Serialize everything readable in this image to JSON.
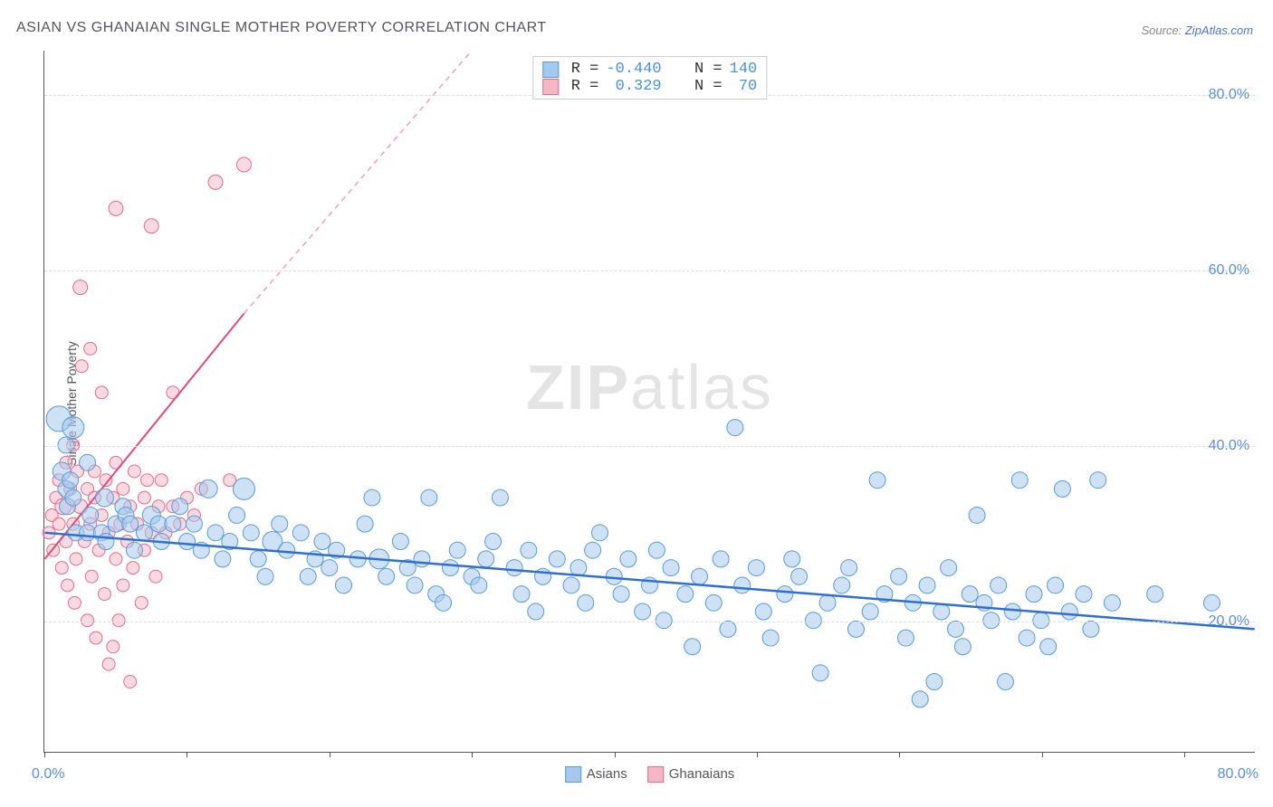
{
  "title": "ASIAN VS GHANAIAN SINGLE MOTHER POVERTY CORRELATION CHART",
  "source_prefix": "Source: ",
  "source_name": "ZipAtlas.com",
  "y_axis_label": "Single Mother Poverty",
  "watermark_bold": "ZIP",
  "watermark_light": "atlas",
  "chart": {
    "type": "scatter",
    "background_color": "#ffffff",
    "grid_color": "#dddddd",
    "axis_color": "#555555",
    "tick_label_color": "#5b8dd6",
    "tick_label_fontsize": 16,
    "title_color": "#555560",
    "title_fontsize": 16,
    "xlim": [
      0,
      85
    ],
    "ylim": [
      5,
      85
    ],
    "x_tick_positions": [
      0,
      10,
      20,
      30,
      40,
      50,
      60,
      70,
      80
    ],
    "x_left_label": "0.0%",
    "x_right_label": "80.0%",
    "y_gridlines": [
      {
        "value": 20,
        "label": "20.0%"
      },
      {
        "value": 40,
        "label": "40.0%"
      },
      {
        "value": 60,
        "label": "60.0%"
      },
      {
        "value": 80,
        "label": "80.0%"
      }
    ],
    "series": [
      {
        "name": "Asians",
        "label": "Asians",
        "fill_color": "#a6c8ec",
        "stroke_color": "#5a9bd5",
        "fill_opacity": 0.55,
        "marker_radius": 9,
        "trend": {
          "x1": 0,
          "y1": 30,
          "x2": 85,
          "y2": 19,
          "color": "#2f6fd0",
          "width": 2.5,
          "dash": "none"
        },
        "stats": {
          "R_label": "R =",
          "R": "-0.440",
          "N_label": "N =",
          "N": "140"
        },
        "points": [
          [
            1,
            43,
            14
          ],
          [
            1.2,
            37,
            10
          ],
          [
            1.5,
            40,
            9
          ],
          [
            1.5,
            35,
            9
          ],
          [
            1.6,
            33,
            9
          ],
          [
            1.8,
            36,
            9
          ],
          [
            2,
            42,
            12
          ],
          [
            2,
            34,
            9
          ],
          [
            2.2,
            30,
            9
          ],
          [
            3,
            38,
            9
          ],
          [
            3,
            30,
            9
          ],
          [
            3.2,
            32,
            9
          ],
          [
            4,
            30,
            9
          ],
          [
            4.2,
            34,
            10
          ],
          [
            4.3,
            29,
            9
          ],
          [
            5,
            31,
            9
          ],
          [
            5.5,
            33,
            9
          ],
          [
            5.7,
            32,
            9
          ],
          [
            6,
            31,
            9
          ],
          [
            6.3,
            28,
            9
          ],
          [
            7,
            30,
            9
          ],
          [
            7.5,
            32,
            10
          ],
          [
            8,
            31,
            9
          ],
          [
            8.2,
            29,
            9
          ],
          [
            9,
            31,
            9
          ],
          [
            9.5,
            33,
            9
          ],
          [
            10,
            29,
            9
          ],
          [
            10.5,
            31,
            9
          ],
          [
            11,
            28,
            9
          ],
          [
            11.5,
            35,
            10
          ],
          [
            12,
            30,
            9
          ],
          [
            12.5,
            27,
            9
          ],
          [
            13,
            29,
            9
          ],
          [
            13.5,
            32,
            9
          ],
          [
            14,
            35,
            12
          ],
          [
            14.5,
            30,
            9
          ],
          [
            15,
            27,
            9
          ],
          [
            15.5,
            25,
            9
          ],
          [
            16,
            29,
            11
          ],
          [
            16.5,
            31,
            9
          ],
          [
            17,
            28,
            9
          ],
          [
            18,
            30,
            9
          ],
          [
            18.5,
            25,
            9
          ],
          [
            19,
            27,
            9
          ],
          [
            19.5,
            29,
            9
          ],
          [
            20,
            26,
            9
          ],
          [
            20.5,
            28,
            9
          ],
          [
            21,
            24,
            9
          ],
          [
            22,
            27,
            9
          ],
          [
            22.5,
            31,
            9
          ],
          [
            23,
            34,
            9
          ],
          [
            23.5,
            27,
            11
          ],
          [
            24,
            25,
            9
          ],
          [
            25,
            29,
            9
          ],
          [
            25.5,
            26,
            9
          ],
          [
            26,
            24,
            9
          ],
          [
            26.5,
            27,
            9
          ],
          [
            27,
            34,
            9
          ],
          [
            27.5,
            23,
            9
          ],
          [
            28,
            22,
            9
          ],
          [
            28.5,
            26,
            9
          ],
          [
            29,
            28,
            9
          ],
          [
            30,
            25,
            9
          ],
          [
            30.5,
            24,
            9
          ],
          [
            31,
            27,
            9
          ],
          [
            31.5,
            29,
            9
          ],
          [
            32,
            34,
            9
          ],
          [
            33,
            26,
            9
          ],
          [
            33.5,
            23,
            9
          ],
          [
            34,
            28,
            9
          ],
          [
            34.5,
            21,
            9
          ],
          [
            35,
            25,
            9
          ],
          [
            36,
            27,
            9
          ],
          [
            37,
            24,
            9
          ],
          [
            37.5,
            26,
            9
          ],
          [
            38,
            22,
            9
          ],
          [
            38.5,
            28,
            9
          ],
          [
            39,
            30,
            9
          ],
          [
            40,
            25,
            9
          ],
          [
            40.5,
            23,
            9
          ],
          [
            41,
            27,
            9
          ],
          [
            42,
            21,
            9
          ],
          [
            42.5,
            24,
            9
          ],
          [
            43,
            28,
            9
          ],
          [
            43.5,
            20,
            9
          ],
          [
            44,
            26,
            9
          ],
          [
            45,
            23,
            9
          ],
          [
            45.5,
            17,
            9
          ],
          [
            46,
            25,
            9
          ],
          [
            47,
            22,
            9
          ],
          [
            47.5,
            27,
            9
          ],
          [
            48,
            19,
            9
          ],
          [
            48.5,
            42,
            9
          ],
          [
            49,
            24,
            9
          ],
          [
            50,
            26,
            9
          ],
          [
            50.5,
            21,
            9
          ],
          [
            51,
            18,
            9
          ],
          [
            52,
            23,
            9
          ],
          [
            52.5,
            27,
            9
          ],
          [
            53,
            25,
            9
          ],
          [
            54,
            20,
            9
          ],
          [
            54.5,
            14,
            9
          ],
          [
            55,
            22,
            9
          ],
          [
            56,
            24,
            9
          ],
          [
            56.5,
            26,
            9
          ],
          [
            57,
            19,
            9
          ],
          [
            58,
            21,
            9
          ],
          [
            58.5,
            36,
            9
          ],
          [
            59,
            23,
            9
          ],
          [
            60,
            25,
            9
          ],
          [
            60.5,
            18,
            9
          ],
          [
            61,
            22,
            9
          ],
          [
            61.5,
            11,
            9
          ],
          [
            62,
            24,
            9
          ],
          [
            62.5,
            13,
            9
          ],
          [
            63,
            21,
            9
          ],
          [
            63.5,
            26,
            9
          ],
          [
            64,
            19,
            9
          ],
          [
            64.5,
            17,
            9
          ],
          [
            65,
            23,
            9
          ],
          [
            65.5,
            32,
            9
          ],
          [
            66,
            22,
            9
          ],
          [
            66.5,
            20,
            9
          ],
          [
            67,
            24,
            9
          ],
          [
            67.5,
            13,
            9
          ],
          [
            68,
            21,
            9
          ],
          [
            68.5,
            36,
            9
          ],
          [
            69,
            18,
            9
          ],
          [
            69.5,
            23,
            9
          ],
          [
            70,
            20,
            9
          ],
          [
            70.5,
            17,
            9
          ],
          [
            71,
            24,
            9
          ],
          [
            71.5,
            35,
            9
          ],
          [
            72,
            21,
            9
          ],
          [
            73,
            23,
            9
          ],
          [
            73.5,
            19,
            9
          ],
          [
            74,
            36,
            9
          ],
          [
            75,
            22,
            9
          ],
          [
            78,
            23,
            9
          ],
          [
            82,
            22,
            9
          ]
        ]
      },
      {
        "name": "Ghanaians",
        "label": "Ghanaians",
        "fill_color": "#f5b6c5",
        "stroke_color": "#e56b8a",
        "fill_opacity": 0.5,
        "marker_radius": 8,
        "trend": {
          "x1": 0,
          "y1": 27,
          "x2": 14,
          "y2": 55,
          "color": "#e04a78",
          "width": 2,
          "dash": "none"
        },
        "trend_extend": {
          "x1": 14,
          "y1": 55,
          "x2": 30,
          "y2": 85,
          "color": "#f0a0b8",
          "width": 1.5,
          "dash": "6 5"
        },
        "stats": {
          "R_label": "R =",
          "R": " 0.329",
          "N_label": "N =",
          "N": " 70"
        },
        "points": [
          [
            0.3,
            30,
            7
          ],
          [
            0.5,
            32,
            7
          ],
          [
            0.6,
            28,
            7
          ],
          [
            0.8,
            34,
            7
          ],
          [
            1,
            31,
            7
          ],
          [
            1,
            36,
            7
          ],
          [
            1.2,
            26,
            7
          ],
          [
            1.3,
            33,
            9
          ],
          [
            1.5,
            29,
            7
          ],
          [
            1.5,
            38,
            7
          ],
          [
            1.6,
            24,
            7
          ],
          [
            1.8,
            35,
            7
          ],
          [
            2,
            31,
            7
          ],
          [
            2,
            40,
            7
          ],
          [
            2.1,
            22,
            7
          ],
          [
            2.2,
            27,
            7
          ],
          [
            2.3,
            37,
            7
          ],
          [
            2.5,
            33,
            8
          ],
          [
            2.5,
            58,
            8
          ],
          [
            2.6,
            49,
            7
          ],
          [
            2.8,
            29,
            7
          ],
          [
            3,
            35,
            7
          ],
          [
            3,
            20,
            7
          ],
          [
            3.2,
            31,
            7
          ],
          [
            3.2,
            51,
            7
          ],
          [
            3.3,
            25,
            7
          ],
          [
            3.5,
            34,
            7
          ],
          [
            3.5,
            37,
            7
          ],
          [
            3.6,
            18,
            7
          ],
          [
            3.8,
            28,
            7
          ],
          [
            4,
            32,
            7
          ],
          [
            4,
            46,
            7
          ],
          [
            4.2,
            23,
            7
          ],
          [
            4.3,
            36,
            7
          ],
          [
            4.5,
            30,
            7
          ],
          [
            4.5,
            15,
            7
          ],
          [
            4.8,
            34,
            7
          ],
          [
            4.8,
            17,
            7
          ],
          [
            5,
            27,
            7
          ],
          [
            5,
            38,
            7
          ],
          [
            5,
            67,
            8
          ],
          [
            5.2,
            20,
            7
          ],
          [
            5.3,
            31,
            7
          ],
          [
            5.5,
            35,
            7
          ],
          [
            5.5,
            24,
            7
          ],
          [
            5.8,
            29,
            7
          ],
          [
            6,
            33,
            7
          ],
          [
            6,
            13,
            7
          ],
          [
            6.2,
            26,
            7
          ],
          [
            6.3,
            37,
            7
          ],
          [
            6.5,
            31,
            7
          ],
          [
            6.8,
            22,
            7
          ],
          [
            7,
            34,
            7
          ],
          [
            7,
            28,
            7
          ],
          [
            7.2,
            36,
            7
          ],
          [
            7.5,
            30,
            7
          ],
          [
            7.5,
            65,
            8
          ],
          [
            7.8,
            25,
            7
          ],
          [
            8,
            33,
            7
          ],
          [
            8.2,
            36,
            7
          ],
          [
            8.5,
            30,
            7
          ],
          [
            9,
            33,
            7
          ],
          [
            9,
            46,
            7
          ],
          [
            9.5,
            31,
            7
          ],
          [
            10,
            34,
            7
          ],
          [
            10.5,
            32,
            7
          ],
          [
            11,
            35,
            7
          ],
          [
            12,
            70,
            8
          ],
          [
            13,
            36,
            7
          ],
          [
            14,
            72,
            8
          ]
        ]
      }
    ],
    "bottom_legend": [
      {
        "label": "Asians",
        "fill": "#a6c8ec",
        "stroke": "#5a9bd5"
      },
      {
        "label": "Ghanaians",
        "fill": "#f5b6c5",
        "stroke": "#e56b8a"
      }
    ]
  }
}
